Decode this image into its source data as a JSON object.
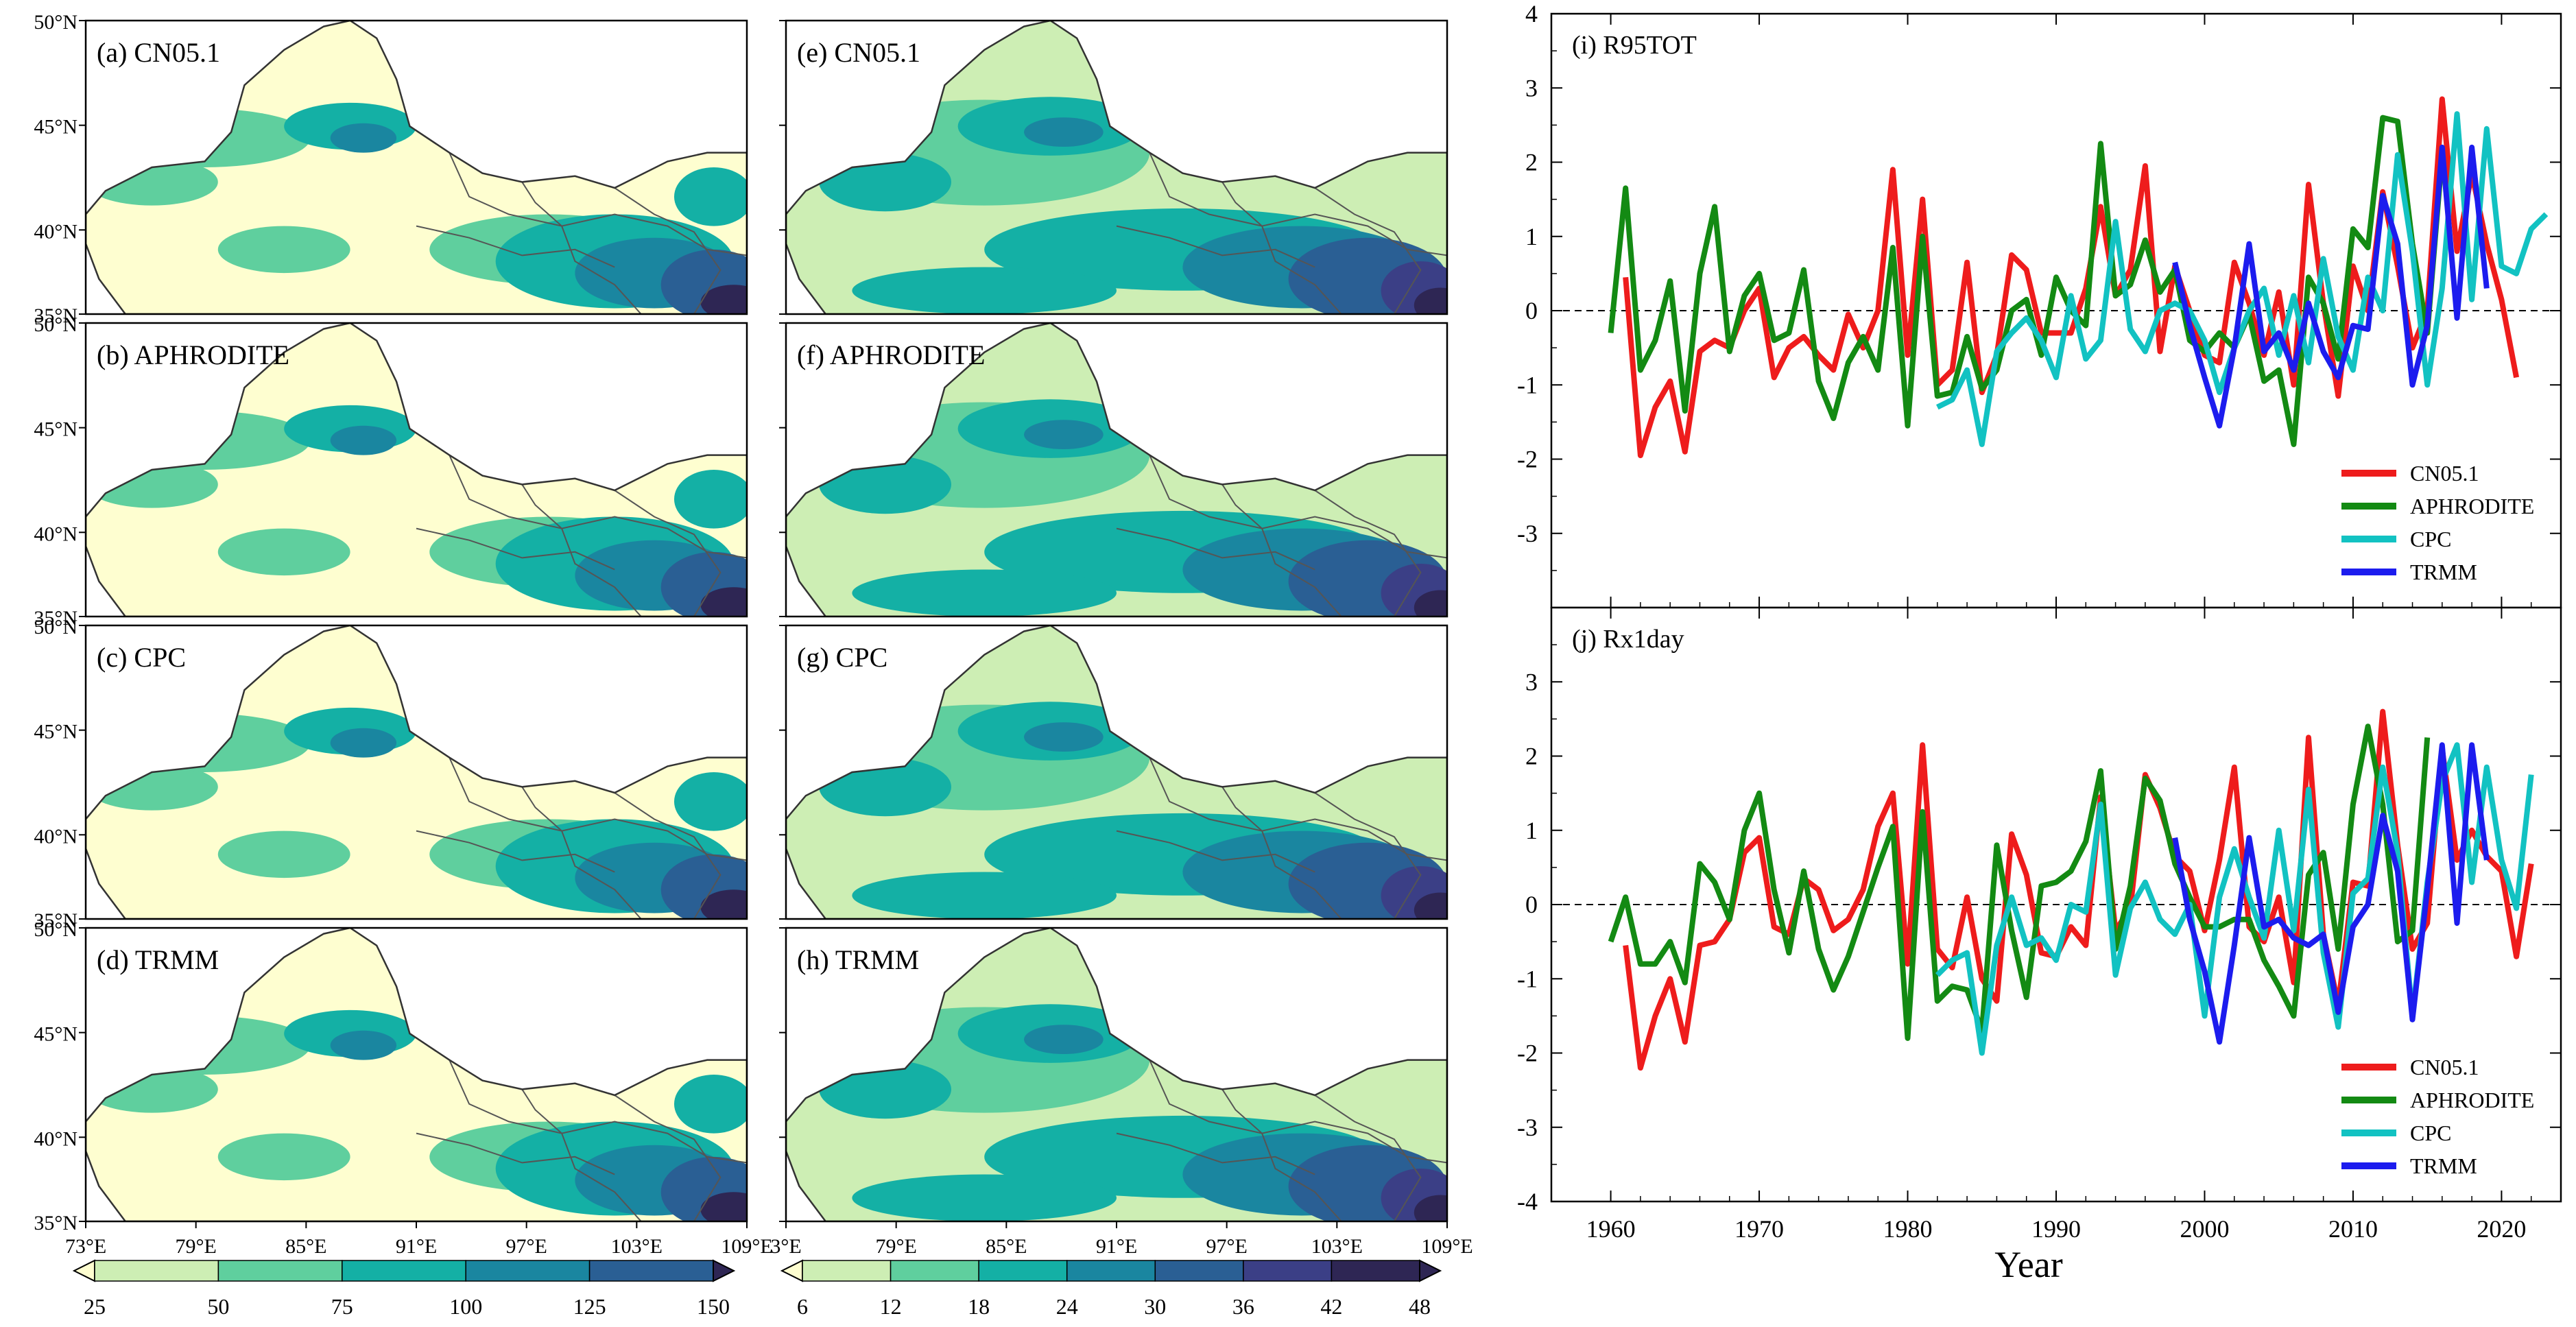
{
  "colors": {
    "cn05": "#ee1c1c",
    "aphrodite": "#138a13",
    "cpc": "#12c2c2",
    "trmm": "#1c1cee",
    "map_fill_light": "#fefed0",
    "map_fill_levels": [
      "#cdeeb4",
      "#5fcf9e",
      "#14b0a5",
      "#1a86a0",
      "#2a5f94",
      "#3b3f86",
      "#2e2654"
    ],
    "border": "#555555"
  },
  "chart_data": [
    {
      "type": "heatmap",
      "panels": [
        {
          "label": "(a) CN05.1"
        },
        {
          "label": "(b) APHRODITE"
        },
        {
          "label": "(c) CPC"
        },
        {
          "label": "(d) TRMM"
        }
      ],
      "lat_ticks": [
        "50°N",
        "45°N",
        "40°N",
        "35°N"
      ],
      "lon_ticks": [
        "73°E",
        "79°E",
        "85°E",
        "91°E",
        "97°E",
        "103°E",
        "109°E"
      ],
      "colorbar": {
        "levels": [
          "25",
          "50",
          "75",
          "100",
          "125",
          "150"
        ]
      }
    },
    {
      "type": "heatmap",
      "panels": [
        {
          "label": "(e) CN05.1"
        },
        {
          "label": "(f) APHRODITE"
        },
        {
          "label": "(g) CPC"
        },
        {
          "label": "(h) TRMM"
        }
      ],
      "lat_ticks": [
        "",
        "",
        "",
        ""
      ],
      "lon_ticks": [
        "3°E",
        "79°E",
        "85°E",
        "91°E",
        "97°E",
        "103°E",
        "109°E"
      ],
      "colorbar": {
        "levels": [
          "6",
          "12",
          "18",
          "24",
          "30",
          "36",
          "42",
          "48"
        ]
      }
    },
    {
      "type": "line",
      "title": "(i) R95TOT",
      "xlim": [
        1956,
        2024
      ],
      "ylim": [
        -4,
        4
      ],
      "x_ticks": [
        "1960",
        "1970",
        "1980",
        "1990",
        "2000",
        "2010",
        "2020"
      ],
      "y_ticks": [
        "-4",
        "-3",
        "-2",
        "-1",
        "0",
        "1",
        "2",
        "3",
        "4"
      ],
      "y_ticks_shown": [
        "",
        "-3",
        "-2",
        "-1",
        "0",
        "1",
        "2",
        "3",
        "4"
      ],
      "zero_line": true,
      "legend_loc": "lower-right",
      "series": [
        {
          "name": "CN05.1",
          "color_key": "cn05",
          "x_start": 1961,
          "values": [
            0.45,
            -1.95,
            -1.3,
            -0.95,
            -1.9,
            -0.55,
            -0.4,
            -0.5,
            0.0,
            0.3,
            -0.9,
            -0.5,
            -0.35,
            -0.6,
            -0.8,
            -0.05,
            -0.5,
            0.0,
            1.9,
            -0.6,
            1.5,
            -1.0,
            -0.8,
            0.65,
            -1.1,
            -0.6,
            0.75,
            0.55,
            -0.3,
            -0.3,
            -0.3,
            0.3,
            1.4,
            0.2,
            0.55,
            1.95,
            -0.55,
            0.6,
            0.0,
            -0.6,
            -0.7,
            0.65,
            0.1,
            -0.6,
            0.25,
            -1.0,
            1.7,
            0.1,
            -1.15,
            0.6,
            0.0,
            1.6,
            0.6,
            -0.5,
            0.0,
            2.85,
            0.8,
            1.85,
            0.9,
            0.15,
            -0.9
          ]
        },
        {
          "name": "APHRODITE",
          "color_key": "aphrodite",
          "x_start": 1960,
          "values": [
            -0.3,
            1.65,
            -0.8,
            -0.4,
            0.4,
            -1.35,
            0.5,
            1.4,
            -0.55,
            0.2,
            0.5,
            -0.4,
            -0.3,
            0.55,
            -0.95,
            -1.45,
            -0.7,
            -0.35,
            -0.8,
            0.85,
            -1.55,
            1.0,
            -1.15,
            -1.1,
            -0.35,
            -1.05,
            -0.8,
            0.0,
            0.15,
            -0.6,
            0.45,
            0.0,
            -0.2,
            2.25,
            0.2,
            0.35,
            0.95,
            0.25,
            0.55,
            -0.4,
            -0.55,
            -0.3,
            -0.5,
            -0.05,
            -0.95,
            -0.8,
            -1.8,
            0.45,
            0.1,
            -0.65,
            1.1,
            0.85,
            2.6,
            2.55,
            0.9,
            -0.3,
            2.1
          ]
        },
        {
          "name": "CPC",
          "color_key": "cpc",
          "x_start": 1982,
          "values": [
            -1.3,
            -1.2,
            -0.8,
            -1.8,
            -0.55,
            -0.3,
            -0.1,
            -0.4,
            -0.9,
            0.2,
            -0.65,
            -0.4,
            1.2,
            -0.25,
            -0.55,
            0.0,
            0.1,
            0.0,
            -0.4,
            -1.1,
            -0.5,
            0.0,
            0.3,
            -0.6,
            0.2,
            -0.7,
            0.7,
            -0.35,
            -0.8,
            0.45,
            0.0,
            2.1,
            0.8,
            -1.0,
            0.3,
            2.65,
            0.15,
            2.45,
            0.6,
            0.5,
            1.1,
            1.3
          ]
        },
        {
          "name": "TRMM",
          "color_key": "trmm",
          "x_start": 1998,
          "values": [
            0.65,
            -0.2,
            -0.9,
            -1.55,
            -0.5,
            0.9,
            -0.55,
            -0.3,
            -0.8,
            0.1,
            -0.55,
            -0.9,
            -0.2,
            -0.25,
            1.55,
            0.9,
            -1.0,
            -0.2,
            2.2,
            -0.1,
            2.2,
            0.3
          ]
        }
      ]
    },
    {
      "type": "line",
      "title": "(j) Rx1day",
      "xlabel": "Year",
      "xlim": [
        1956,
        2024
      ],
      "ylim": [
        -4,
        4
      ],
      "x_ticks": [
        "1960",
        "1970",
        "1980",
        "1990",
        "2000",
        "2010",
        "2020"
      ],
      "y_ticks": [
        "-4",
        "-3",
        "-2",
        "-1",
        "0",
        "1",
        "2",
        "3",
        "4"
      ],
      "y_ticks_shown": [
        "-4",
        "-3",
        "-2",
        "-1",
        "0",
        "1",
        "2",
        "3",
        ""
      ],
      "zero_line": true,
      "legend_loc": "lower-right",
      "series": [
        {
          "name": "CN05.1",
          "color_key": "cn05",
          "x_start": 1961,
          "values": [
            -0.55,
            -2.2,
            -1.5,
            -1.0,
            -1.85,
            -0.55,
            -0.5,
            -0.2,
            0.7,
            0.9,
            -0.3,
            -0.4,
            0.35,
            0.2,
            -0.35,
            -0.2,
            0.2,
            1.05,
            1.5,
            -0.8,
            2.15,
            -0.6,
            -0.85,
            0.1,
            -1.0,
            -1.3,
            0.95,
            0.4,
            -0.65,
            -0.7,
            -0.3,
            -0.55,
            1.45,
            -0.35,
            -0.05,
            1.75,
            1.3,
            0.65,
            0.45,
            -0.35,
            0.6,
            1.85,
            -0.3,
            -0.5,
            0.1,
            -1.05,
            2.25,
            -0.4,
            -1.35,
            0.3,
            0.25,
            2.6,
            0.8,
            -0.6,
            -0.25,
            2.1,
            0.6,
            1.0,
            0.65,
            0.45,
            -0.7,
            0.55
          ]
        },
        {
          "name": "APHRODITE",
          "color_key": "aphrodite",
          "x_start": 1960,
          "values": [
            -0.5,
            0.1,
            -0.8,
            -0.8,
            -0.5,
            -1.05,
            0.55,
            0.3,
            -0.2,
            1.0,
            1.5,
            0.2,
            -0.65,
            0.45,
            -0.6,
            -1.15,
            -0.7,
            -0.1,
            0.5,
            1.05,
            -1.8,
            1.25,
            -1.3,
            -1.1,
            -1.15,
            -1.7,
            0.8,
            -0.35,
            -1.25,
            0.25,
            0.3,
            0.45,
            0.85,
            1.8,
            -0.6,
            0.25,
            1.7,
            1.4,
            0.55,
            0.1,
            -0.3,
            -0.3,
            -0.2,
            -0.2,
            -0.75,
            -1.1,
            -1.5,
            0.4,
            0.7,
            -0.6,
            1.35,
            2.4,
            1.35,
            -0.5,
            -0.35,
            2.25
          ]
        },
        {
          "name": "CPC",
          "color_key": "cpc",
          "x_start": 1982,
          "values": [
            -0.95,
            -0.75,
            -0.65,
            -2.0,
            -0.55,
            0.1,
            -0.55,
            -0.45,
            -0.75,
            0.0,
            -0.1,
            1.35,
            -0.95,
            -0.05,
            0.3,
            -0.2,
            -0.4,
            0.0,
            -1.5,
            0.1,
            0.75,
            0.1,
            -0.45,
            1.0,
            -0.35,
            1.55,
            -0.65,
            -1.65,
            0.15,
            0.35,
            1.85,
            0.7,
            -1.5,
            0.3,
            1.65,
            2.15,
            0.3,
            1.85,
            0.6,
            -0.05,
            1.75
          ]
        },
        {
          "name": "TRMM",
          "color_key": "trmm",
          "x_start": 1998,
          "values": [
            0.9,
            -0.2,
            -0.9,
            -1.85,
            -0.55,
            0.9,
            -0.3,
            -0.2,
            -0.45,
            -0.55,
            -0.4,
            -1.45,
            -0.3,
            0.0,
            1.2,
            0.45,
            -1.55,
            0.2,
            2.15,
            -0.25,
            2.15,
            0.6
          ]
        }
      ]
    }
  ]
}
